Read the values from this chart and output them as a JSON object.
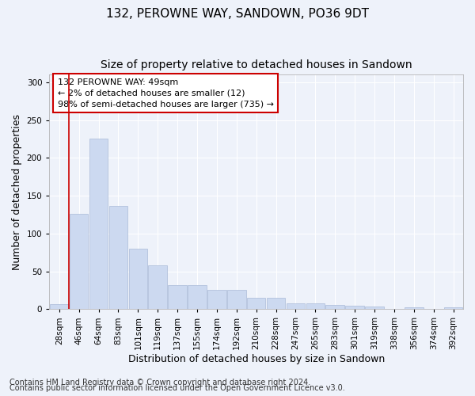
{
  "title": "132, PEROWNE WAY, SANDOWN, PO36 9DT",
  "subtitle": "Size of property relative to detached houses in Sandown",
  "xlabel": "Distribution of detached houses by size in Sandown",
  "ylabel": "Number of detached properties",
  "categories": [
    "28sqm",
    "46sqm",
    "64sqm",
    "83sqm",
    "101sqm",
    "119sqm",
    "137sqm",
    "155sqm",
    "174sqm",
    "192sqm",
    "210sqm",
    "228sqm",
    "247sqm",
    "265sqm",
    "283sqm",
    "301sqm",
    "319sqm",
    "338sqm",
    "356sqm",
    "374sqm",
    "392sqm"
  ],
  "values": [
    7,
    126,
    226,
    136,
    80,
    58,
    32,
    32,
    25,
    25,
    15,
    15,
    8,
    8,
    6,
    5,
    3,
    0,
    2,
    0,
    2
  ],
  "bar_color": "#ccd9f0",
  "bar_edge_color": "#aabbd8",
  "vline_x_index": 1,
  "vline_color": "#cc0000",
  "annotation_text": "132 PEROWNE WAY: 49sqm\n← 2% of detached houses are smaller (12)\n98% of semi-detached houses are larger (735) →",
  "annotation_box_color": "#ffffff",
  "annotation_box_edge": "#cc0000",
  "ylim": [
    0,
    310
  ],
  "yticks": [
    0,
    50,
    100,
    150,
    200,
    250,
    300
  ],
  "footer_line1": "Contains HM Land Registry data © Crown copyright and database right 2024.",
  "footer_line2": "Contains public sector information licensed under the Open Government Licence v3.0.",
  "bg_color": "#eef2fa",
  "plot_bg_color": "#eef2fa",
  "grid_color": "#ffffff",
  "title_fontsize": 11,
  "subtitle_fontsize": 10,
  "axis_label_fontsize": 9,
  "tick_fontsize": 7.5,
  "footer_fontsize": 7,
  "annotation_fontsize": 8
}
